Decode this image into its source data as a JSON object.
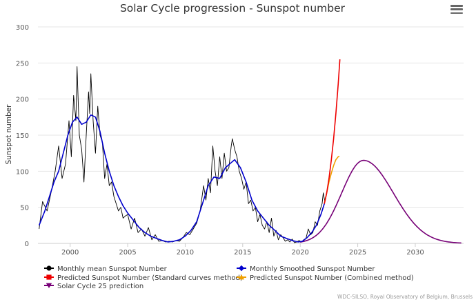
{
  "chart_data": {
    "type": "line",
    "title": "Solar Cycle progression - Sunspot number",
    "xlabel": "",
    "ylabel": "Sunspot number",
    "xlim": [
      1997.2,
      2034.2
    ],
    "ylim": [
      0,
      300
    ],
    "x_ticks": [
      "2000",
      "2005",
      "2010",
      "2015",
      "2020",
      "2025",
      "2030"
    ],
    "y_ticks": [
      "0",
      "50",
      "100",
      "150",
      "200",
      "250",
      "300"
    ],
    "grid": "horizontal",
    "legend_position": "bottom-left",
    "series": [
      {
        "name": "Monthly mean Sunspot Number",
        "color": "#000000",
        "marker": "circle",
        "points": [
          [
            1997.3,
            20
          ],
          [
            1997.6,
            58
          ],
          [
            1998.0,
            45
          ],
          [
            1998.4,
            75
          ],
          [
            1998.7,
            100
          ],
          [
            1999.0,
            135
          ],
          [
            1999.3,
            90
          ],
          [
            1999.6,
            110
          ],
          [
            1999.9,
            170
          ],
          [
            2000.1,
            120
          ],
          [
            2000.3,
            205
          ],
          [
            2000.5,
            170
          ],
          [
            2000.6,
            245
          ],
          [
            2000.8,
            150
          ],
          [
            2001.0,
            130
          ],
          [
            2001.2,
            85
          ],
          [
            2001.4,
            150
          ],
          [
            2001.6,
            210
          ],
          [
            2001.7,
            180
          ],
          [
            2001.8,
            235
          ],
          [
            2002.0,
            170
          ],
          [
            2002.2,
            125
          ],
          [
            2002.4,
            190
          ],
          [
            2002.6,
            150
          ],
          [
            2002.8,
            140
          ],
          [
            2003.0,
            90
          ],
          [
            2003.2,
            110
          ],
          [
            2003.4,
            80
          ],
          [
            2003.6,
            85
          ],
          [
            2003.8,
            65
          ],
          [
            2004.0,
            55
          ],
          [
            2004.2,
            45
          ],
          [
            2004.4,
            50
          ],
          [
            2004.6,
            35
          ],
          [
            2004.8,
            38
          ],
          [
            2005.0,
            40
          ],
          [
            2005.3,
            20
          ],
          [
            2005.6,
            35
          ],
          [
            2005.9,
            15
          ],
          [
            2006.2,
            20
          ],
          [
            2006.5,
            10
          ],
          [
            2006.8,
            22
          ],
          [
            2007.1,
            5
          ],
          [
            2007.4,
            12
          ],
          [
            2007.7,
            3
          ],
          [
            2008.0,
            4
          ],
          [
            2008.3,
            2
          ],
          [
            2008.6,
            3
          ],
          [
            2008.9,
            2
          ],
          [
            2009.2,
            4
          ],
          [
            2009.5,
            3
          ],
          [
            2009.8,
            8
          ],
          [
            2010.1,
            15
          ],
          [
            2010.4,
            12
          ],
          [
            2010.7,
            20
          ],
          [
            2011.0,
            28
          ],
          [
            2011.3,
            45
          ],
          [
            2011.6,
            80
          ],
          [
            2011.8,
            60
          ],
          [
            2012.0,
            90
          ],
          [
            2012.2,
            70
          ],
          [
            2012.4,
            135
          ],
          [
            2012.6,
            100
          ],
          [
            2012.8,
            80
          ],
          [
            2013.0,
            120
          ],
          [
            2013.2,
            90
          ],
          [
            2013.4,
            125
          ],
          [
            2013.6,
            100
          ],
          [
            2013.8,
            105
          ],
          [
            2014.0,
            135
          ],
          [
            2014.1,
            145
          ],
          [
            2014.3,
            130
          ],
          [
            2014.5,
            120
          ],
          [
            2014.7,
            100
          ],
          [
            2014.9,
            90
          ],
          [
            2015.1,
            75
          ],
          [
            2015.3,
            85
          ],
          [
            2015.5,
            55
          ],
          [
            2015.7,
            60
          ],
          [
            2015.9,
            45
          ],
          [
            2016.1,
            50
          ],
          [
            2016.3,
            30
          ],
          [
            2016.5,
            40
          ],
          [
            2016.7,
            25
          ],
          [
            2016.9,
            20
          ],
          [
            2017.1,
            30
          ],
          [
            2017.3,
            15
          ],
          [
            2017.5,
            35
          ],
          [
            2017.7,
            10
          ],
          [
            2017.9,
            18
          ],
          [
            2018.1,
            5
          ],
          [
            2018.3,
            12
          ],
          [
            2018.5,
            8
          ],
          [
            2018.7,
            3
          ],
          [
            2018.9,
            5
          ],
          [
            2019.1,
            2
          ],
          [
            2019.3,
            6
          ],
          [
            2019.5,
            1
          ],
          [
            2019.7,
            2
          ],
          [
            2019.9,
            4
          ],
          [
            2020.1,
            2
          ],
          [
            2020.3,
            5
          ],
          [
            2020.5,
            7
          ],
          [
            2020.7,
            20
          ],
          [
            2020.9,
            12
          ],
          [
            2021.1,
            15
          ],
          [
            2021.3,
            30
          ],
          [
            2021.5,
            25
          ],
          [
            2021.7,
            45
          ],
          [
            2021.9,
            55
          ],
          [
            2022.0,
            70
          ],
          [
            2022.15,
            57
          ]
        ]
      },
      {
        "name": "Monthly Smoothed Sunspot Number",
        "color": "#0000cc",
        "marker": "diamond",
        "points": [
          [
            1997.3,
            25
          ],
          [
            1997.8,
            45
          ],
          [
            1998.2,
            65
          ],
          [
            1998.6,
            85
          ],
          [
            1999.0,
            100
          ],
          [
            1999.4,
            125
          ],
          [
            1999.8,
            150
          ],
          [
            2000.2,
            168
          ],
          [
            2000.6,
            175
          ],
          [
            2001.0,
            165
          ],
          [
            2001.4,
            168
          ],
          [
            2001.8,
            178
          ],
          [
            2002.2,
            175
          ],
          [
            2002.6,
            155
          ],
          [
            2003.0,
            125
          ],
          [
            2003.4,
            100
          ],
          [
            2003.8,
            80
          ],
          [
            2004.2,
            65
          ],
          [
            2004.6,
            52
          ],
          [
            2005.0,
            42
          ],
          [
            2005.5,
            32
          ],
          [
            2006.0,
            22
          ],
          [
            2006.5,
            15
          ],
          [
            2007.0,
            10
          ],
          [
            2007.5,
            7
          ],
          [
            2008.0,
            4
          ],
          [
            2008.5,
            2
          ],
          [
            2009.0,
            3
          ],
          [
            2009.5,
            5
          ],
          [
            2010.0,
            10
          ],
          [
            2010.5,
            18
          ],
          [
            2011.0,
            30
          ],
          [
            2011.5,
            55
          ],
          [
            2012.0,
            80
          ],
          [
            2012.5,
            92
          ],
          [
            2013.0,
            90
          ],
          [
            2013.5,
            105
          ],
          [
            2014.0,
            112
          ],
          [
            2014.3,
            116
          ],
          [
            2014.8,
            105
          ],
          [
            2015.3,
            85
          ],
          [
            2015.8,
            60
          ],
          [
            2016.3,
            45
          ],
          [
            2016.8,
            35
          ],
          [
            2017.3,
            25
          ],
          [
            2017.8,
            18
          ],
          [
            2018.3,
            10
          ],
          [
            2018.8,
            7
          ],
          [
            2019.3,
            4
          ],
          [
            2019.8,
            2
          ],
          [
            2020.2,
            3
          ],
          [
            2020.6,
            8
          ],
          [
            2021.0,
            15
          ],
          [
            2021.4,
            25
          ],
          [
            2021.8,
            40
          ],
          [
            2022.1,
            55
          ]
        ]
      },
      {
        "name": "Predicted Sunspot Number (Standard curves method)",
        "color": "#ee0000",
        "marker": "square",
        "points": [
          [
            2022.1,
            55
          ],
          [
            2022.3,
            70
          ],
          [
            2022.5,
            90
          ],
          [
            2022.7,
            115
          ],
          [
            2022.9,
            145
          ],
          [
            2023.1,
            180
          ],
          [
            2023.3,
            220
          ],
          [
            2023.45,
            255
          ]
        ]
      },
      {
        "name": "Predicted Sunspot Number (Combined method)",
        "color": "#f0a000",
        "marker": "triangle",
        "points": [
          [
            2022.1,
            55
          ],
          [
            2022.3,
            70
          ],
          [
            2022.5,
            85
          ],
          [
            2022.7,
            97
          ],
          [
            2022.9,
            108
          ],
          [
            2023.1,
            116
          ],
          [
            2023.3,
            120
          ],
          [
            2023.4,
            121
          ]
        ]
      },
      {
        "name": "Solar Cycle 25 prediction",
        "color": "#770077",
        "marker": "triangle-down",
        "peak": {
          "x": 2025.5,
          "y": 115
        },
        "range": [
          2020.0,
          2034.0
        ]
      }
    ],
    "credit": "WDC-SILSO, Royal Observatory of Belgium, Brussels"
  }
}
